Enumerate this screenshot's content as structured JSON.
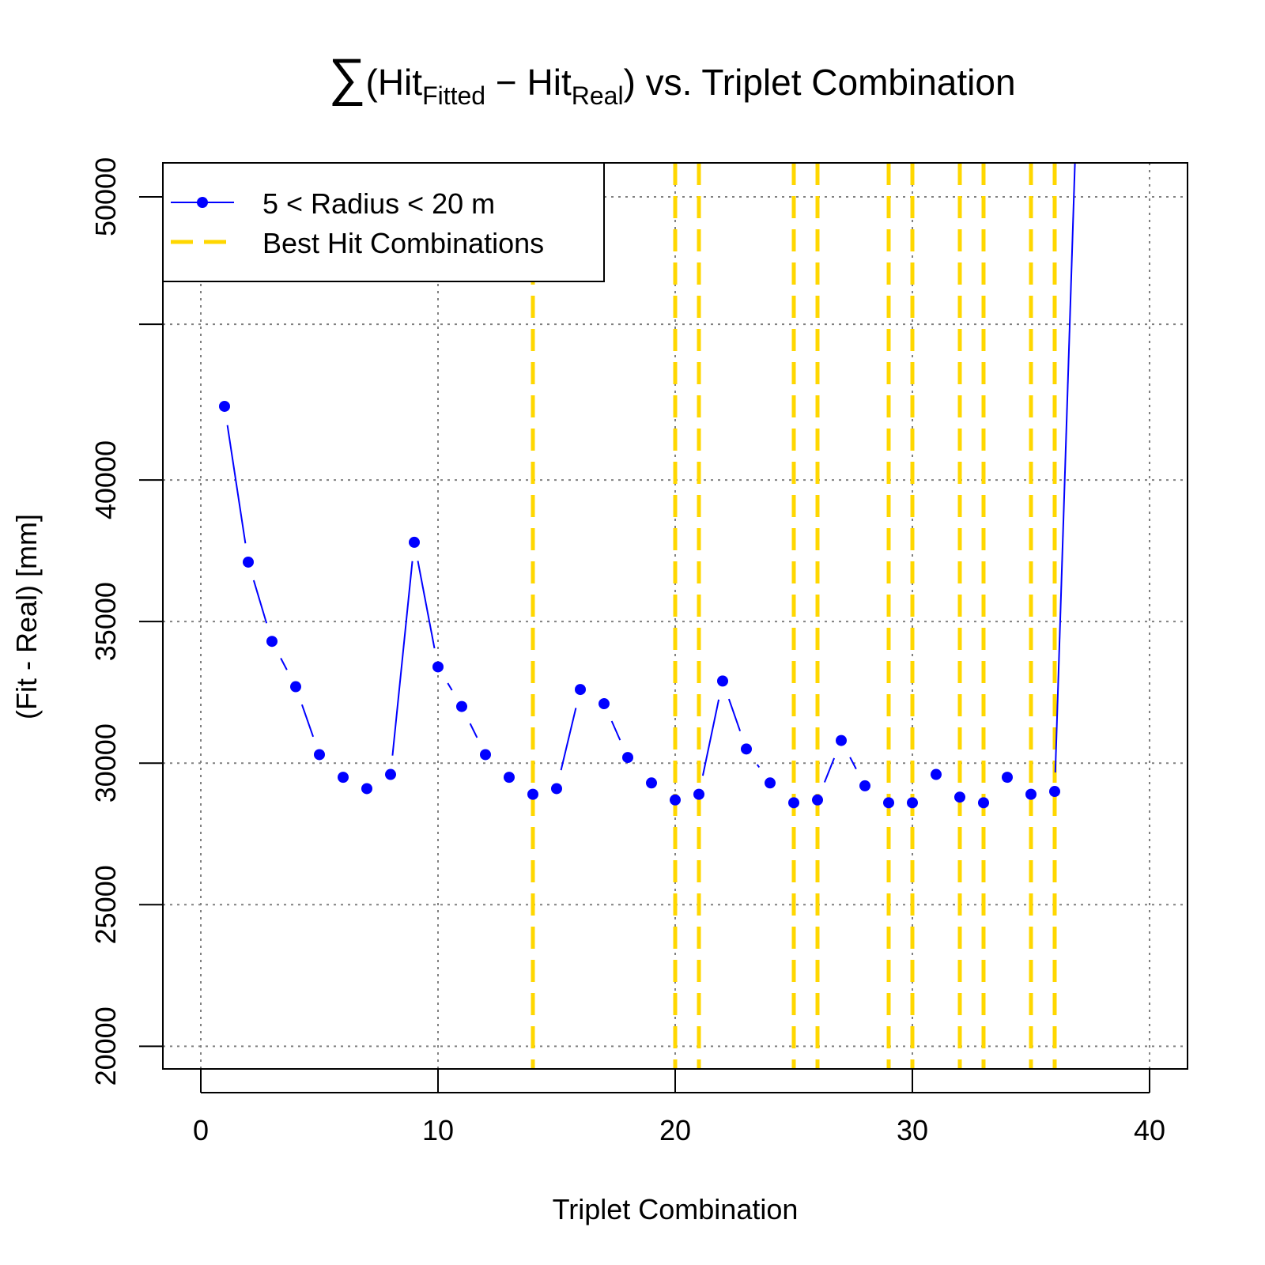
{
  "chart_data": {
    "type": "line",
    "title": {
      "sum_symbol": "∑",
      "open": "(Hit",
      "sub_fitted": "Fitted",
      "minus": " − Hit",
      "sub_real": "Real",
      "rest": ") vs. Triplet Combination"
    },
    "xlabel": "Triplet Combination",
    "ylabel": "(Fit - Real) [mm]",
    "xlim": [
      -1.6,
      41.6
    ],
    "ylim": [
      19200,
      51200
    ],
    "x_ticks": [
      0,
      10,
      20,
      30,
      40
    ],
    "y_ticks": [
      20000,
      25000,
      30000,
      35000,
      40000,
      50000
    ],
    "x_grid": [
      0,
      10,
      20,
      30,
      40
    ],
    "y_grid": [
      20000,
      25000,
      30000,
      35000,
      40000,
      45500,
      50000
    ],
    "grid": true,
    "legend": {
      "placement": "top-left",
      "entries": [
        {
          "label": "5 < Radius < 20 m",
          "color": "#0000ff",
          "style": "line-point"
        },
        {
          "label": "Best Hit Combinations",
          "color": "#ffd700",
          "style": "dashed"
        }
      ]
    },
    "series": [
      {
        "name": "5 < Radius < 20 m",
        "color": "#0000ff",
        "x": [
          1,
          2,
          3,
          4,
          5,
          6,
          7,
          8,
          9,
          10,
          11,
          12,
          13,
          14,
          15,
          16,
          17,
          18,
          19,
          20,
          21,
          22,
          23,
          24,
          25,
          26,
          27,
          28,
          29,
          30,
          31,
          32,
          33,
          34,
          35,
          36,
          37
        ],
        "y": [
          42600,
          37100,
          34300,
          32700,
          30300,
          29500,
          29100,
          29600,
          37800,
          33400,
          32000,
          30300,
          29500,
          28900,
          29100,
          32600,
          32100,
          30200,
          29300,
          28700,
          28900,
          32900,
          30500,
          29300,
          28600,
          28700,
          30800,
          29200,
          28600,
          28600,
          29600,
          28800,
          28600,
          29500,
          28900,
          29000,
          55000
        ]
      }
    ],
    "best_hit_combinations": {
      "name": "Best Hit Combinations",
      "color": "#ffd700",
      "x": [
        14,
        20,
        21,
        25,
        26,
        29,
        30,
        32,
        33,
        35,
        36
      ]
    }
  }
}
